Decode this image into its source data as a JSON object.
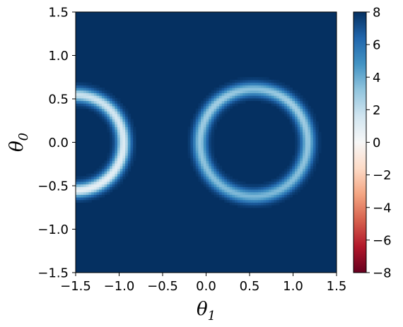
{
  "chart_data": {
    "type": "heatmap",
    "title": "",
    "xlabel": {
      "symbol": "θ",
      "subscript": "1"
    },
    "ylabel": {
      "symbol": "θ",
      "subscript": "0"
    },
    "xlim": [
      -1.5,
      1.5
    ],
    "ylim": [
      -1.5,
      1.5
    ],
    "x_ticks": [
      "−1.5",
      "−1.0",
      "−0.5",
      "0.0",
      "0.5",
      "1.0",
      "1.5"
    ],
    "y_ticks": [
      "−1.5",
      "−1.0",
      "−0.5",
      "0.0",
      "0.5",
      "1.0",
      "1.5"
    ],
    "colorbar": {
      "colormap": "RdBu",
      "range": [
        -8,
        8
      ],
      "ticks": [
        "−8",
        "−6",
        "−4",
        "−2",
        "0",
        "2",
        "4",
        "6",
        "8"
      ],
      "colors": [
        "#67001f",
        "#b2182b",
        "#d6604d",
        "#f4a582",
        "#fddbc7",
        "#f7f7f7",
        "#d1e5f0",
        "#92c5de",
        "#4393c3",
        "#2166ac",
        "#053061"
      ]
    },
    "background_value": 8,
    "features": [
      {
        "name": "left-arc",
        "center_x": -1.5,
        "center_y": 0.0,
        "radius": 0.55,
        "y_range": [
          -0.95,
          1.0
        ],
        "min_value": 0.2
      },
      {
        "name": "right-arc",
        "center_x": 0.55,
        "center_y": 0.0,
        "radius": 0.62,
        "y_range": [
          -0.95,
          0.82
        ],
        "min_value": 2.4
      }
    ]
  }
}
